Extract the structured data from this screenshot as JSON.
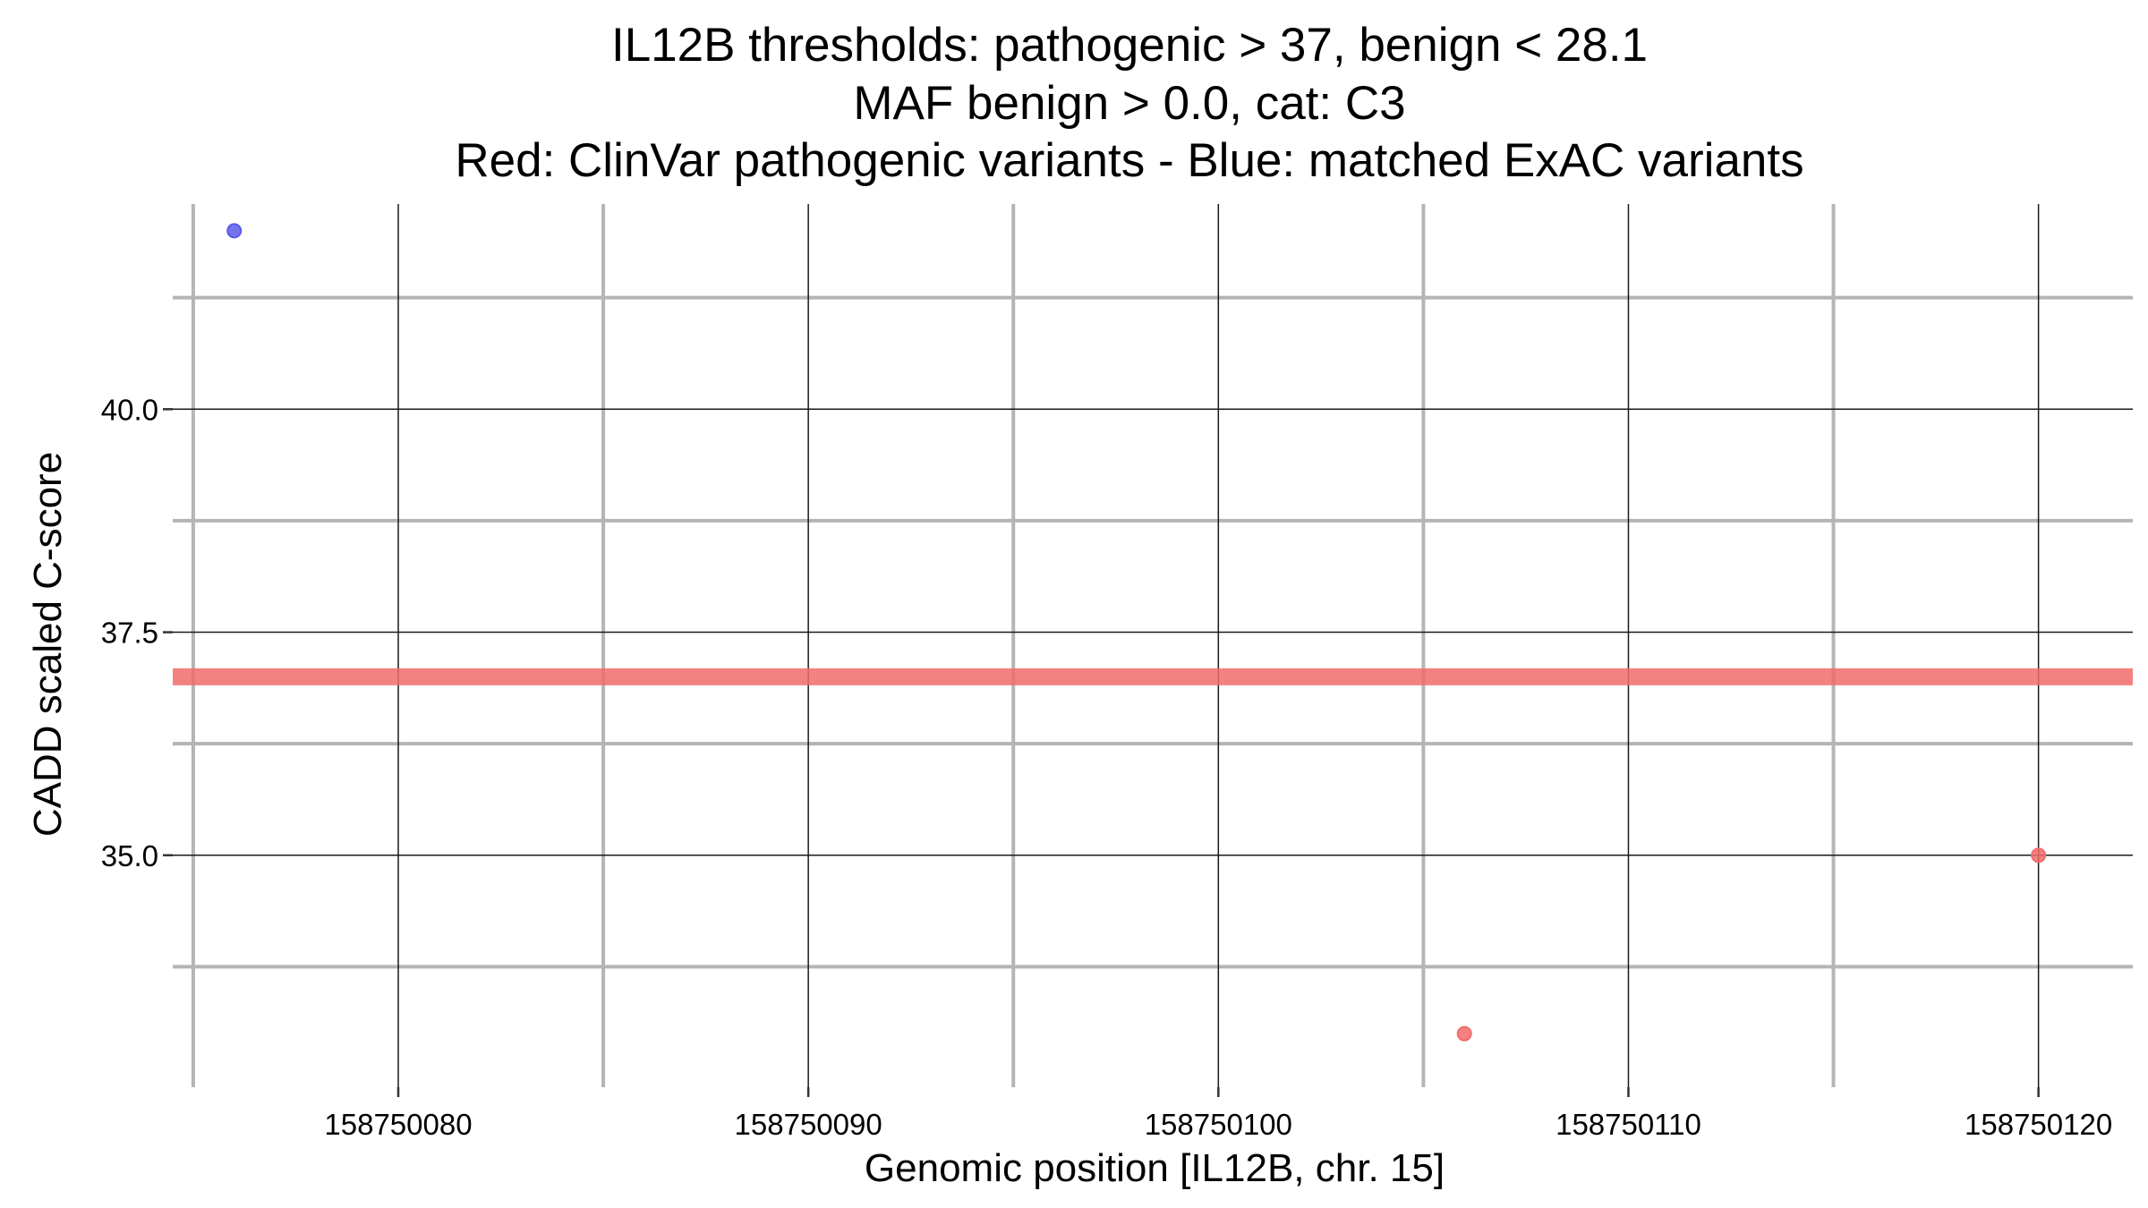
{
  "chart_data": {
    "type": "scatter",
    "title_lines": [
      "IL12B thresholds: pathogenic > 37, benign < 28.1",
      "MAF benign > 0.0, cat: C3",
      "Red: ClinVar pathogenic variants - Blue: matched ExAC variants"
    ],
    "xlabel": "Genomic position [IL12B, chr. 15]",
    "ylabel": "CADD scaled C-score",
    "xlim": [
      158750074.5,
      158750122.3
    ],
    "ylim": [
      32.4,
      42.3
    ],
    "x_ticks": [
      158750080,
      158750090,
      158750100,
      158750110,
      158750120
    ],
    "x_tick_labels": [
      "158750080",
      "158750090",
      "158750100",
      "158750110",
      "158750120"
    ],
    "x_minor_ticks": [
      158750075,
      158750085,
      158750095,
      158750105,
      158750115
    ],
    "y_ticks": [
      35.0,
      37.5,
      40.0
    ],
    "y_tick_labels": [
      "35.0",
      "37.5",
      "40.0"
    ],
    "y_minor_ticks": [
      33.75,
      36.25,
      38.75,
      41.25
    ],
    "grid": true,
    "threshold_line": {
      "y": 37,
      "color": "#f26b6b"
    },
    "series": [
      {
        "color": "#f26b6b",
        "points": [
          {
            "x": 158750106,
            "y": 33.0
          },
          {
            "x": 158750120,
            "y": 35.0
          }
        ]
      },
      {
        "color": "#5b5be8",
        "points": [
          {
            "x": 158750076,
            "y": 42.0
          }
        ]
      }
    ]
  }
}
